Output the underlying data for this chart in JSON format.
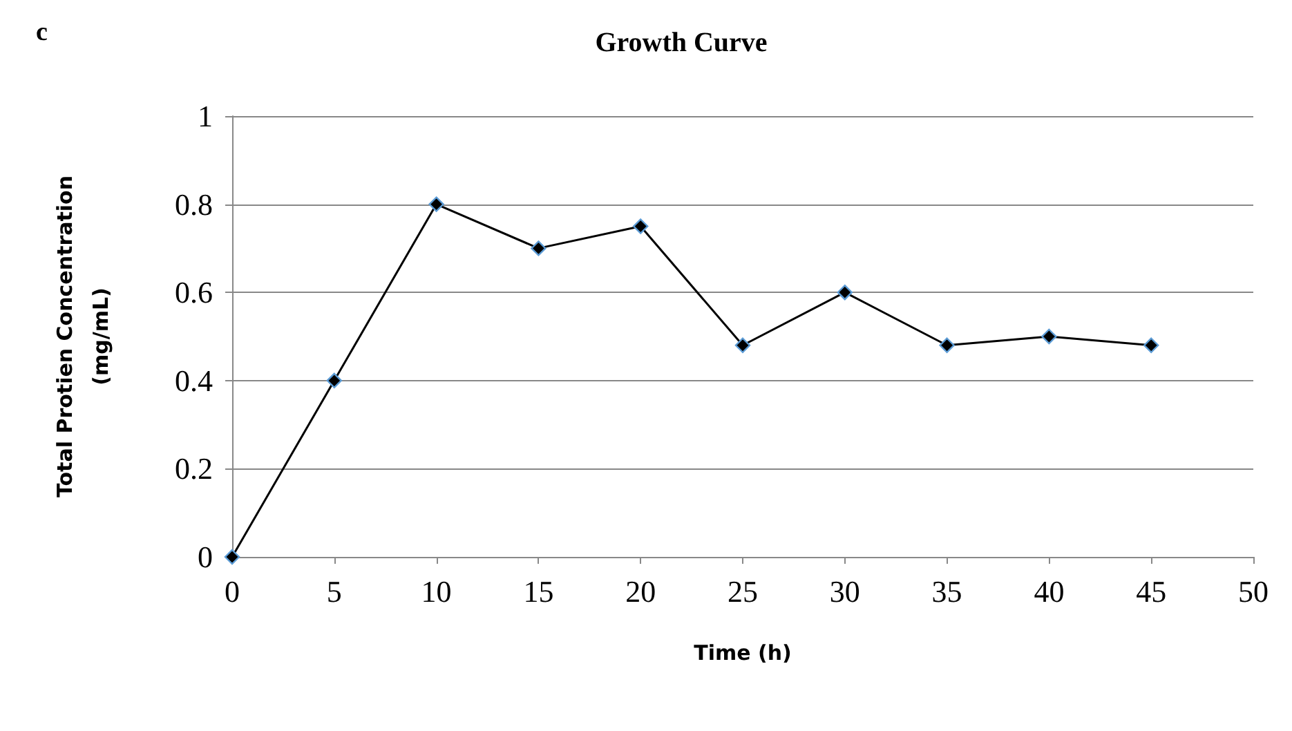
{
  "chart_data": {
    "type": "line",
    "title": "Growth Curve",
    "xlabel": "Time (h)",
    "ylabel": "Total Protien Concentration\n(mg/mL)",
    "annotations": [
      "c"
    ],
    "x": [
      0,
      5,
      10,
      15,
      20,
      25,
      30,
      35,
      40,
      45
    ],
    "series": [
      {
        "color": "#000000",
        "values": [
          0,
          0.4,
          0.8,
          0.7,
          0.75,
          0.48,
          0.6,
          0.48,
          0.5,
          0.48
        ]
      }
    ],
    "xlim": [
      0,
      50
    ],
    "xticks": [
      0,
      5,
      10,
      15,
      20,
      25,
      30,
      35,
      40,
      45,
      50
    ],
    "ylim": [
      0,
      1
    ],
    "yticks": [
      0,
      0.2,
      0.4,
      0.6,
      0.8,
      1
    ],
    "grid": "y",
    "marker": "diamond",
    "line_style": "solid"
  }
}
